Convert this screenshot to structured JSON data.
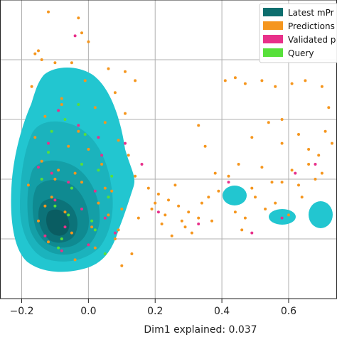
{
  "chart_data": {
    "type": "scatter",
    "title": "",
    "xlabel": "Dim1 explained: 0.037",
    "ylabel": "",
    "xlim": [
      -0.265,
      0.745
    ],
    "ylim": [
      -1.0,
      0.0
    ],
    "x_ticks": [
      -0.2,
      0.0,
      0.2,
      0.4,
      0.6
    ],
    "x_tick_labels": [
      "−0.2",
      "0.0",
      "0.2",
      "0.4",
      "0.6"
    ],
    "grid": true,
    "legend": {
      "position": "top-right",
      "entries": [
        {
          "label": "Latest mPr",
          "color": "#0d6e6e"
        },
        {
          "label": "Predictions",
          "color": "#f5961e"
        },
        {
          "label": "Validated p",
          "color": "#e8308a"
        },
        {
          "label": "Query",
          "color": "#57e03a"
        }
      ]
    },
    "series": [
      {
        "name": "Predictions",
        "color": "#f5961e",
        "values": [
          [
            -0.12,
            -0.04
          ],
          [
            -0.02,
            -0.11
          ],
          [
            -0.15,
            -0.17
          ],
          [
            -0.05,
            -0.21
          ],
          [
            0.06,
            -0.23
          ],
          [
            0.11,
            -0.24
          ],
          [
            0.14,
            -0.27
          ],
          [
            0.08,
            -0.31
          ],
          [
            -0.1,
            -0.21
          ],
          [
            -0.17,
            -0.29
          ],
          [
            -0.08,
            -0.33
          ],
          [
            0.02,
            -0.36
          ],
          [
            -0.13,
            -0.39
          ],
          [
            0.05,
            -0.41
          ],
          [
            -0.03,
            -0.44
          ],
          [
            -0.16,
            -0.46
          ],
          [
            0.09,
            -0.47
          ],
          [
            -0.06,
            -0.49
          ],
          [
            0.12,
            -0.52
          ],
          [
            -0.14,
            -0.54
          ],
          [
            0.04,
            -0.55
          ],
          [
            -0.09,
            -0.57
          ],
          [
            0.14,
            -0.59
          ],
          [
            -0.02,
            -0.61
          ],
          [
            -0.18,
            -0.62
          ],
          [
            0.07,
            -0.64
          ],
          [
            -0.11,
            -0.66
          ],
          [
            0.03,
            -0.68
          ],
          [
            0.1,
            -0.7
          ],
          [
            -0.07,
            -0.71
          ],
          [
            0.15,
            -0.73
          ],
          [
            -0.15,
            -0.74
          ],
          [
            0.01,
            -0.76
          ],
          [
            -0.05,
            -0.78
          ],
          [
            0.08,
            -0.8
          ],
          [
            -0.12,
            -0.81
          ],
          [
            0.02,
            -0.83
          ],
          [
            0.13,
            -0.85
          ],
          [
            -0.04,
            -0.87
          ],
          [
            0.1,
            -0.89
          ],
          [
            -0.08,
            -0.35
          ],
          [
            0.0,
            -0.5
          ],
          [
            -0.1,
            -0.6
          ],
          [
            0.06,
            -0.72
          ],
          [
            -0.01,
            -0.27
          ],
          [
            0.11,
            -0.38
          ],
          [
            -0.04,
            -0.58
          ],
          [
            0.05,
            -0.63
          ],
          [
            -0.13,
            -0.69
          ],
          [
            0.09,
            -0.77
          ],
          [
            0.18,
            -0.63
          ],
          [
            0.21,
            -0.65
          ],
          [
            0.24,
            -0.67
          ],
          [
            0.27,
            -0.69
          ],
          [
            0.3,
            -0.71
          ],
          [
            0.33,
            -0.73
          ],
          [
            0.36,
            -0.66
          ],
          [
            0.22,
            -0.75
          ],
          [
            0.26,
            -0.62
          ],
          [
            0.19,
            -0.7
          ],
          [
            0.29,
            -0.76
          ],
          [
            0.34,
            -0.68
          ],
          [
            0.39,
            -0.64
          ],
          [
            0.23,
            -0.72
          ],
          [
            0.31,
            -0.78
          ],
          [
            0.28,
            -0.74
          ],
          [
            0.25,
            -0.79
          ],
          [
            0.2,
            -0.68
          ],
          [
            0.37,
            -0.74
          ],
          [
            0.44,
            -0.71
          ],
          [
            0.47,
            -0.73
          ],
          [
            0.5,
            -0.66
          ],
          [
            0.53,
            -0.7
          ],
          [
            0.56,
            -0.68
          ],
          [
            0.46,
            -0.77
          ],
          [
            0.49,
            -0.63
          ],
          [
            0.58,
            -0.61
          ],
          [
            0.61,
            -0.57
          ],
          [
            0.63,
            -0.62
          ],
          [
            0.66,
            -0.55
          ],
          [
            0.68,
            -0.6
          ],
          [
            0.52,
            -0.56
          ],
          [
            0.55,
            -0.61
          ],
          [
            0.7,
            -0.58
          ],
          [
            0.64,
            -0.66
          ],
          [
            0.6,
            -0.72
          ],
          [
            0.42,
            -0.59
          ],
          [
            0.38,
            -0.58
          ],
          [
            0.45,
            -0.55
          ],
          [
            0.41,
            -0.27
          ],
          [
            0.44,
            -0.26
          ],
          [
            0.47,
            -0.28
          ],
          [
            0.52,
            -0.27
          ],
          [
            0.56,
            -0.29
          ],
          [
            0.61,
            -0.28
          ],
          [
            0.65,
            -0.27
          ],
          [
            0.7,
            -0.29
          ],
          [
            0.72,
            -0.36
          ],
          [
            0.71,
            -0.44
          ],
          [
            0.69,
            -0.52
          ],
          [
            0.63,
            -0.45
          ],
          [
            0.58,
            -0.48
          ],
          [
            0.54,
            -0.41
          ],
          [
            0.49,
            -0.46
          ],
          [
            0.35,
            -0.49
          ],
          [
            0.33,
            -0.42
          ],
          [
            0.58,
            -0.4
          ],
          [
            0.66,
            -0.5
          ],
          [
            0.73,
            -0.48
          ],
          [
            -0.16,
            -0.18
          ],
          [
            -0.14,
            -0.2
          ],
          [
            0.0,
            -0.14
          ],
          [
            -0.03,
            -0.06
          ]
        ]
      },
      {
        "name": "Validated p",
        "color": "#e8308a",
        "values": [
          [
            -0.04,
            -0.12
          ],
          [
            -0.09,
            -0.37
          ],
          [
            -0.03,
            -0.42
          ],
          [
            -0.12,
            -0.48
          ],
          [
            0.04,
            -0.52
          ],
          [
            -0.15,
            -0.56
          ],
          [
            -0.06,
            -0.61
          ],
          [
            0.02,
            -0.64
          ],
          [
            -0.1,
            -0.67
          ],
          [
            -0.02,
            -0.7
          ],
          [
            0.05,
            -0.73
          ],
          [
            -0.07,
            -0.76
          ],
          [
            -0.13,
            -0.79
          ],
          [
            0.0,
            -0.82
          ],
          [
            -0.08,
            -0.84
          ],
          [
            0.03,
            -0.46
          ],
          [
            -0.11,
            -0.58
          ],
          [
            0.08,
            -0.78
          ],
          [
            0.42,
            -0.61
          ],
          [
            0.49,
            -0.78
          ],
          [
            0.62,
            -0.58
          ],
          [
            0.21,
            -0.71
          ],
          [
            0.16,
            -0.55
          ],
          [
            0.11,
            -0.48
          ],
          [
            0.68,
            -0.55
          ],
          [
            0.58,
            -0.73
          ],
          [
            0.33,
            -0.75
          ]
        ]
      },
      {
        "name": "Query",
        "color": "#57e03a",
        "values": [
          [
            -0.07,
            -0.4
          ],
          [
            -0.01,
            -0.45
          ],
          [
            -0.12,
            -0.51
          ],
          [
            0.03,
            -0.57
          ],
          [
            -0.05,
            -0.63
          ],
          [
            -0.1,
            -0.69
          ],
          [
            0.01,
            -0.74
          ],
          [
            -0.08,
            -0.8
          ],
          [
            0.05,
            -0.85
          ],
          [
            -0.02,
            -0.55
          ],
          [
            -0.14,
            -0.6
          ],
          [
            0.06,
            -0.66
          ],
          [
            -0.06,
            -0.72
          ],
          [
            -0.11,
            -0.44
          ],
          [
            0.02,
            -0.77
          ],
          [
            -0.03,
            -0.35
          ],
          [
            0.07,
            -0.59
          ],
          [
            -0.09,
            -0.83
          ]
        ]
      }
    ]
  }
}
